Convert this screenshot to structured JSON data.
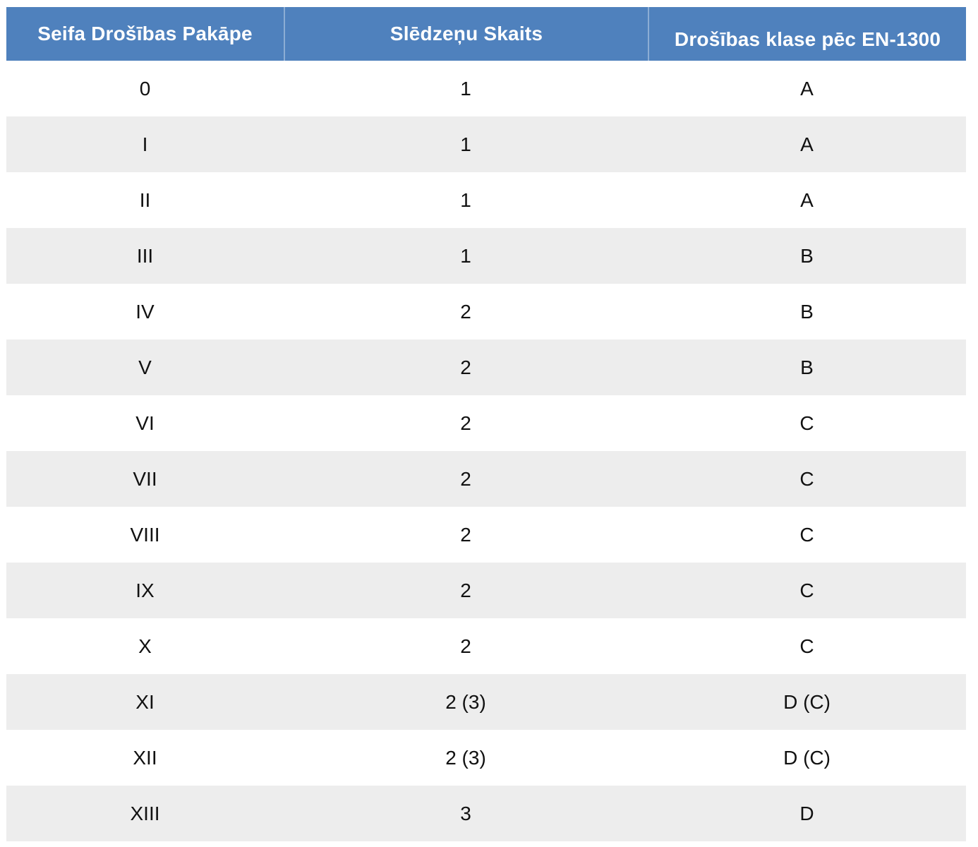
{
  "table": {
    "columns": [
      {
        "label": "Seifa Drošības Pakāpe"
      },
      {
        "label": "Slēdzeņu Skaits"
      },
      {
        "label": "Drošības klase pēc EN-1300"
      }
    ],
    "rows": [
      {
        "level": "0",
        "locks": "1",
        "class": "A"
      },
      {
        "level": "I",
        "locks": "1",
        "class": "A"
      },
      {
        "level": "II",
        "locks": "1",
        "class": "A"
      },
      {
        "level": "III",
        "locks": "1",
        "class": "B"
      },
      {
        "level": "IV",
        "locks": "2",
        "class": "B"
      },
      {
        "level": "V",
        "locks": "2",
        "class": "B"
      },
      {
        "level": "VI",
        "locks": "2",
        "class": "C"
      },
      {
        "level": "VII",
        "locks": "2",
        "class": "C"
      },
      {
        "level": "VIII",
        "locks": "2",
        "class": "C"
      },
      {
        "level": "IX",
        "locks": "2",
        "class": "C"
      },
      {
        "level": "X",
        "locks": "2",
        "class": "C"
      },
      {
        "level": "XI",
        "locks": "2 (3)",
        "class": "D (C)"
      },
      {
        "level": "XII",
        "locks": "2 (3)",
        "class": "D (C)"
      },
      {
        "level": "XIII",
        "locks": "3",
        "class": "D"
      }
    ],
    "colors": {
      "header_bg": "#4f81bd",
      "header_text": "#ffffff",
      "row_bg": "#ffffff",
      "row_alt_bg": "#ededed",
      "cell_text": "#111111"
    }
  }
}
